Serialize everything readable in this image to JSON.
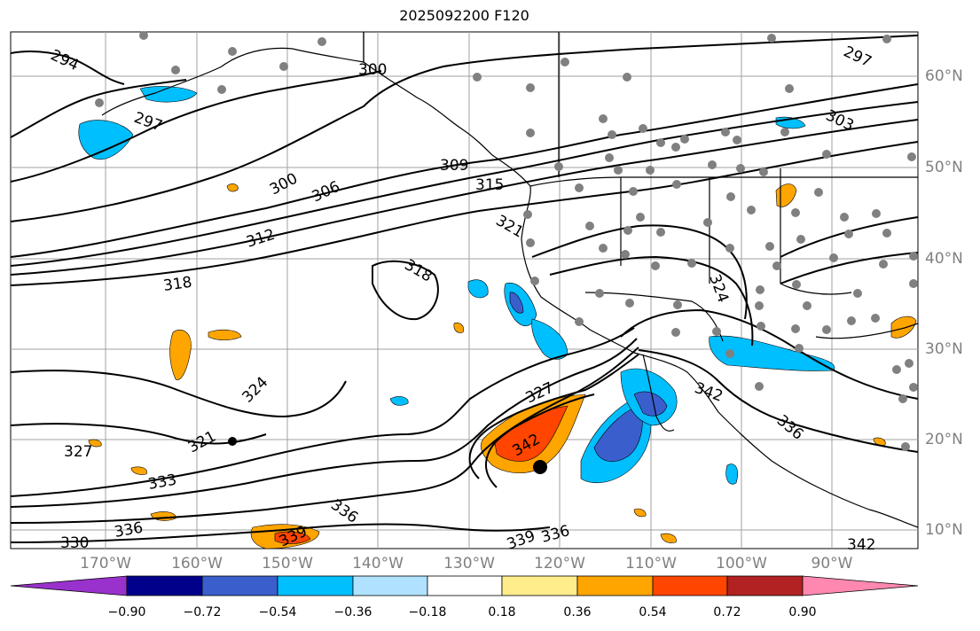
{
  "title": "2025092200 F120",
  "latitude_labels": [
    "60°N",
    "50°N",
    "40°N",
    "30°N",
    "20°N",
    "10°N"
  ],
  "longitude_labels": [
    "170°W",
    "160°W",
    "150°W",
    "140°W",
    "130°W",
    "120°W",
    "110°W",
    "100°W",
    "90°W"
  ],
  "contour_labels": [
    "294",
    "297",
    "300",
    "300",
    "306",
    "309",
    "312",
    "315",
    "318",
    "318",
    "321",
    "321",
    "324",
    "324",
    "327",
    "327",
    "330",
    "333",
    "336",
    "336",
    "336",
    "339",
    "339",
    "342",
    "342",
    "303",
    "297",
    "336",
    "342"
  ],
  "colorbar": {
    "tick_labels": [
      "−0.90",
      "−0.72",
      "−0.54",
      "−0.36",
      "−0.18",
      "0.18",
      "0.36",
      "0.54",
      "0.72",
      "0.90"
    ],
    "colors": [
      "#9932cc",
      "#00008b",
      "#3a5fcd",
      "#00bfff",
      "#b0e2ff",
      "#ffffff",
      "#ffec8b",
      "#ffa500",
      "#ff4500",
      "#b22222",
      "#ff88b0"
    ]
  },
  "colors": {
    "grid": "#a0a0a0",
    "contour": "#000000",
    "coast": "#000000",
    "station": "#808080",
    "axis_label": "#808080"
  }
}
